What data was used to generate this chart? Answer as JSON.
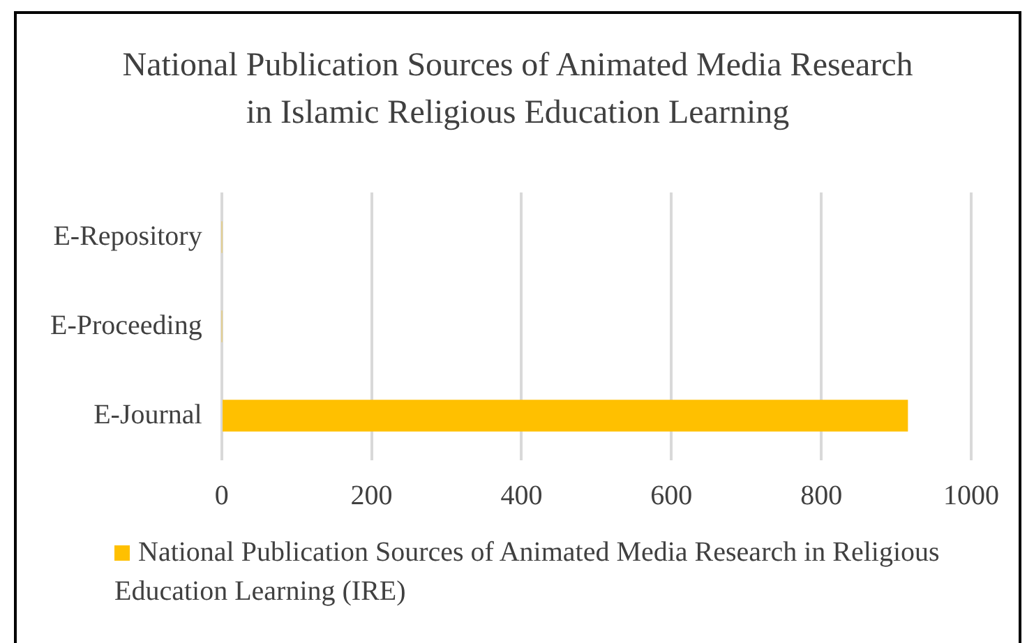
{
  "chart_data": {
    "type": "bar",
    "orientation": "horizontal",
    "title": "National Publication Sources of Animated Media Research in Islamic Religious Education Learning",
    "categories": [
      "E-Repository",
      "E-Proceeding",
      "E-Journal"
    ],
    "series": [
      {
        "name": "National Publication Sources of Animated Media Research in Religious Education Learning (IRE)",
        "color": "#ffc000",
        "values": [
          0,
          0,
          915
        ]
      }
    ],
    "xlim": [
      0,
      1000
    ],
    "xticks": [
      0,
      200,
      400,
      600,
      800,
      1000
    ],
    "grid": "x",
    "legend": "bottom"
  }
}
